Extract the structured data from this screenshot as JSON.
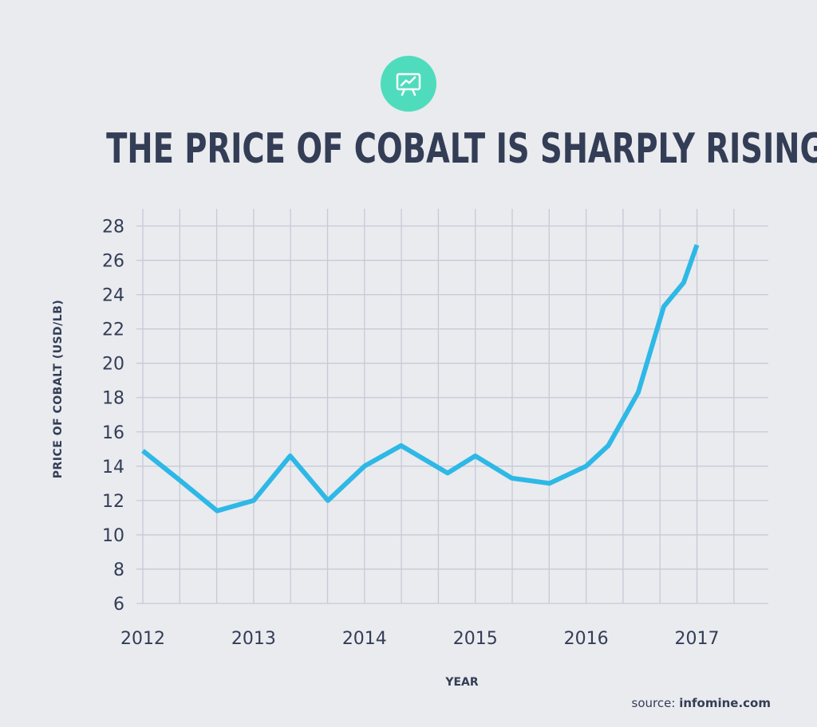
{
  "title": "THE PRICE OF COBALT IS SHARPLY RISING",
  "icon": "chart-presentation-icon",
  "source": {
    "prefix": "source:",
    "name": "infomine.com"
  },
  "colors": {
    "background": "#e9ebef",
    "title": "#333d55",
    "icon_badge": "#4fdcbc",
    "line": "#2eb8e6",
    "grid": "#c7c9d6"
  },
  "chart_data": {
    "type": "line",
    "title": "THE PRICE OF COBALT IS SHARPLY RISING",
    "xlabel": "YEAR",
    "ylabel": "PRICE OF COBALT (USD/LB)",
    "x_ticks": [
      "2012",
      "2013",
      "2014",
      "2015",
      "2016",
      "2017"
    ],
    "y_ticks": [
      6,
      8,
      10,
      12,
      14,
      16,
      18,
      20,
      22,
      24,
      26,
      28
    ],
    "xlim": [
      2012,
      2017.5
    ],
    "ylim": [
      6,
      29
    ],
    "grid": true,
    "series": [
      {
        "x": [
          2012.0,
          2012.33,
          2012.67,
          2013.0,
          2013.33,
          2013.67,
          2014.0,
          2014.33,
          2014.75,
          2015.0,
          2015.33,
          2015.67,
          2016.0,
          2016.2,
          2016.47,
          2016.7,
          2016.88,
          2017.0
        ],
        "y": [
          14.9,
          13.2,
          11.4,
          12.0,
          14.6,
          12.0,
          14.0,
          15.2,
          13.6,
          14.6,
          13.3,
          13.0,
          14.0,
          15.2,
          18.3,
          23.3,
          24.7,
          26.9
        ]
      }
    ]
  }
}
